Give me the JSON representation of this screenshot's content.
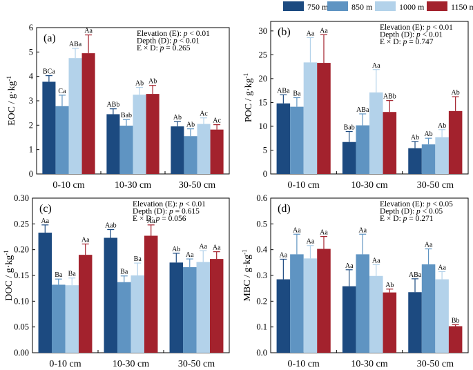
{
  "legend": {
    "items": [
      {
        "label": "750 m",
        "color": "#1c4a80"
      },
      {
        "label": "850 m",
        "color": "#5f94c2"
      },
      {
        "label": "1000 m",
        "color": "#b3d2ea"
      },
      {
        "label": "1150 m",
        "color": "#a3222d"
      }
    ]
  },
  "chart_data": [
    {
      "type": "bar",
      "panel": "(a)",
      "ylabel": "EOC / g·kg",
      "ylabel_sup": "-1",
      "ylim": [
        0,
        6
      ],
      "yticks": [
        "0",
        "1",
        "2",
        "3",
        "4",
        "5",
        "6"
      ],
      "categories": [
        "0-10 cm",
        "10-30 cm",
        "30-50 cm"
      ],
      "stats": [
        "Elevation (E): p < 0.01",
        "Depth (D): p < 0.01",
        "E × D: p = 0.265"
      ],
      "series": [
        {
          "name": "750 m",
          "values": [
            3.78,
            2.45,
            1.95
          ],
          "errors": [
            0.25,
            0.22,
            0.2
          ],
          "labels": [
            "BCa",
            "ABb",
            "Ab"
          ]
        },
        {
          "name": "850 m",
          "values": [
            2.78,
            1.98,
            1.55
          ],
          "errors": [
            0.45,
            0.25,
            0.3
          ],
          "labels": [
            "Ca",
            "Bab",
            "Ab"
          ]
        },
        {
          "name": "1000 m",
          "values": [
            4.75,
            3.25,
            2.05
          ],
          "errors": [
            0.4,
            0.3,
            0.25
          ],
          "labels": [
            "ABa",
            "Ab",
            "Ac"
          ]
        },
        {
          "name": "1150 m",
          "values": [
            4.95,
            3.28,
            1.82
          ],
          "errors": [
            0.75,
            0.35,
            0.2
          ],
          "labels": [
            "Aa",
            "Ab",
            "Ac"
          ]
        }
      ]
    },
    {
      "type": "bar",
      "panel": "(b)",
      "ylabel": "POC / g·kg",
      "ylabel_sup": "-1",
      "ylim": [
        0,
        32
      ],
      "yticks": [
        "0",
        "5",
        "10",
        "15",
        "20",
        "25",
        "30"
      ],
      "categories": [
        "0-10 cm",
        "10-30 cm",
        "30-50 cm"
      ],
      "stats": [
        "Elevation (E): p < 0.01",
        "Depth (D): p < 0.01",
        "E × D: p = 0.747"
      ],
      "series": [
        {
          "name": "750 m",
          "values": [
            14.8,
            6.7,
            5.4
          ],
          "errors": [
            1.8,
            2.2,
            1.4
          ],
          "labels": [
            "ABa",
            "Bab",
            "Ab"
          ]
        },
        {
          "name": "850 m",
          "values": [
            14.1,
            10.2,
            6.2
          ],
          "errors": [
            1.9,
            2.4,
            1.3
          ],
          "labels": [
            "Ba",
            "ABa",
            "Ab"
          ]
        },
        {
          "name": "1000 m",
          "values": [
            23.4,
            17.1,
            7.7
          ],
          "errors": [
            5.2,
            4.8,
            1.6
          ],
          "labels": [
            "Aa",
            "Aa",
            "Ab"
          ]
        },
        {
          "name": "1150 m",
          "values": [
            23.3,
            13.0,
            13.2
          ],
          "errors": [
            5.9,
            2.4,
            3.0
          ],
          "labels": [
            "Aa",
            "ABb",
            "Ab"
          ]
        }
      ]
    },
    {
      "type": "bar",
      "panel": "(c)",
      "ylabel": "DOC / g·kg",
      "ylabel_sup": "-1",
      "ylim": [
        0,
        0.3
      ],
      "yticks": [
        "0.00",
        "0.05",
        "0.10",
        "0.15",
        "0.20",
        "0.25",
        "0.30"
      ],
      "categories": [
        "0-10 cm",
        "10-30 cm",
        "30-50 cm"
      ],
      "stats": [
        "Elevation (E): p < 0.01",
        "Depth (D): p = 0.615",
        "E × D: p = 0.056"
      ],
      "series": [
        {
          "name": "750 m",
          "values": [
            0.233,
            0.223,
            0.175
          ],
          "errors": [
            0.015,
            0.016,
            0.018
          ],
          "labels": [
            "Aa",
            "Aab",
            "Ab"
          ]
        },
        {
          "name": "850 m",
          "values": [
            0.132,
            0.137,
            0.166
          ],
          "errors": [
            0.011,
            0.012,
            0.016
          ],
          "labels": [
            "Ba",
            "Ba",
            "Aa"
          ]
        },
        {
          "name": "1000 m",
          "values": [
            0.131,
            0.15,
            0.176
          ],
          "errors": [
            0.014,
            0.024,
            0.022
          ],
          "labels": [
            "Ba",
            "Ba",
            "Aa"
          ]
        },
        {
          "name": "1150 m",
          "values": [
            0.19,
            0.227,
            0.182
          ],
          "errors": [
            0.021,
            0.021,
            0.014
          ],
          "labels": [
            "Aa",
            "Aa",
            "Aa"
          ]
        }
      ]
    },
    {
      "type": "bar",
      "panel": "(d)",
      "ylabel": "MBC / g·kg",
      "ylabel_sup": "-1",
      "ylim": [
        0,
        0.6
      ],
      "yticks": [
        "0.0",
        "0.1",
        "0.2",
        "0.3",
        "0.4",
        "0.5",
        "0.6"
      ],
      "categories": [
        "0-10 cm",
        "10-30 cm",
        "30-50 cm"
      ],
      "stats": [
        "Elevation (E): p < 0.05",
        "Depth (D): p < 0.05",
        "E × D: p = 0.271"
      ],
      "series": [
        {
          "name": "750 m",
          "values": [
            0.285,
            0.258,
            0.235
          ],
          "errors": [
            0.078,
            0.064,
            0.052
          ],
          "labels": [
            "Aa",
            "Aa",
            "ABa"
          ]
        },
        {
          "name": "850 m",
          "values": [
            0.382,
            0.382,
            0.343
          ],
          "errors": [
            0.078,
            0.078,
            0.06
          ],
          "labels": [
            "Aa",
            "Aa",
            "Aa"
          ]
        },
        {
          "name": "1000 m",
          "values": [
            0.366,
            0.298,
            0.285
          ],
          "errors": [
            0.05,
            0.044,
            0.03
          ],
          "labels": [
            "Aa",
            "Aa",
            "Aa"
          ]
        },
        {
          "name": "1150 m",
          "values": [
            0.403,
            0.234,
            0.103
          ],
          "errors": [
            0.048,
            0.013,
            0.006
          ],
          "labels": [
            "Aa",
            "Ab",
            "Bb"
          ]
        }
      ]
    }
  ]
}
